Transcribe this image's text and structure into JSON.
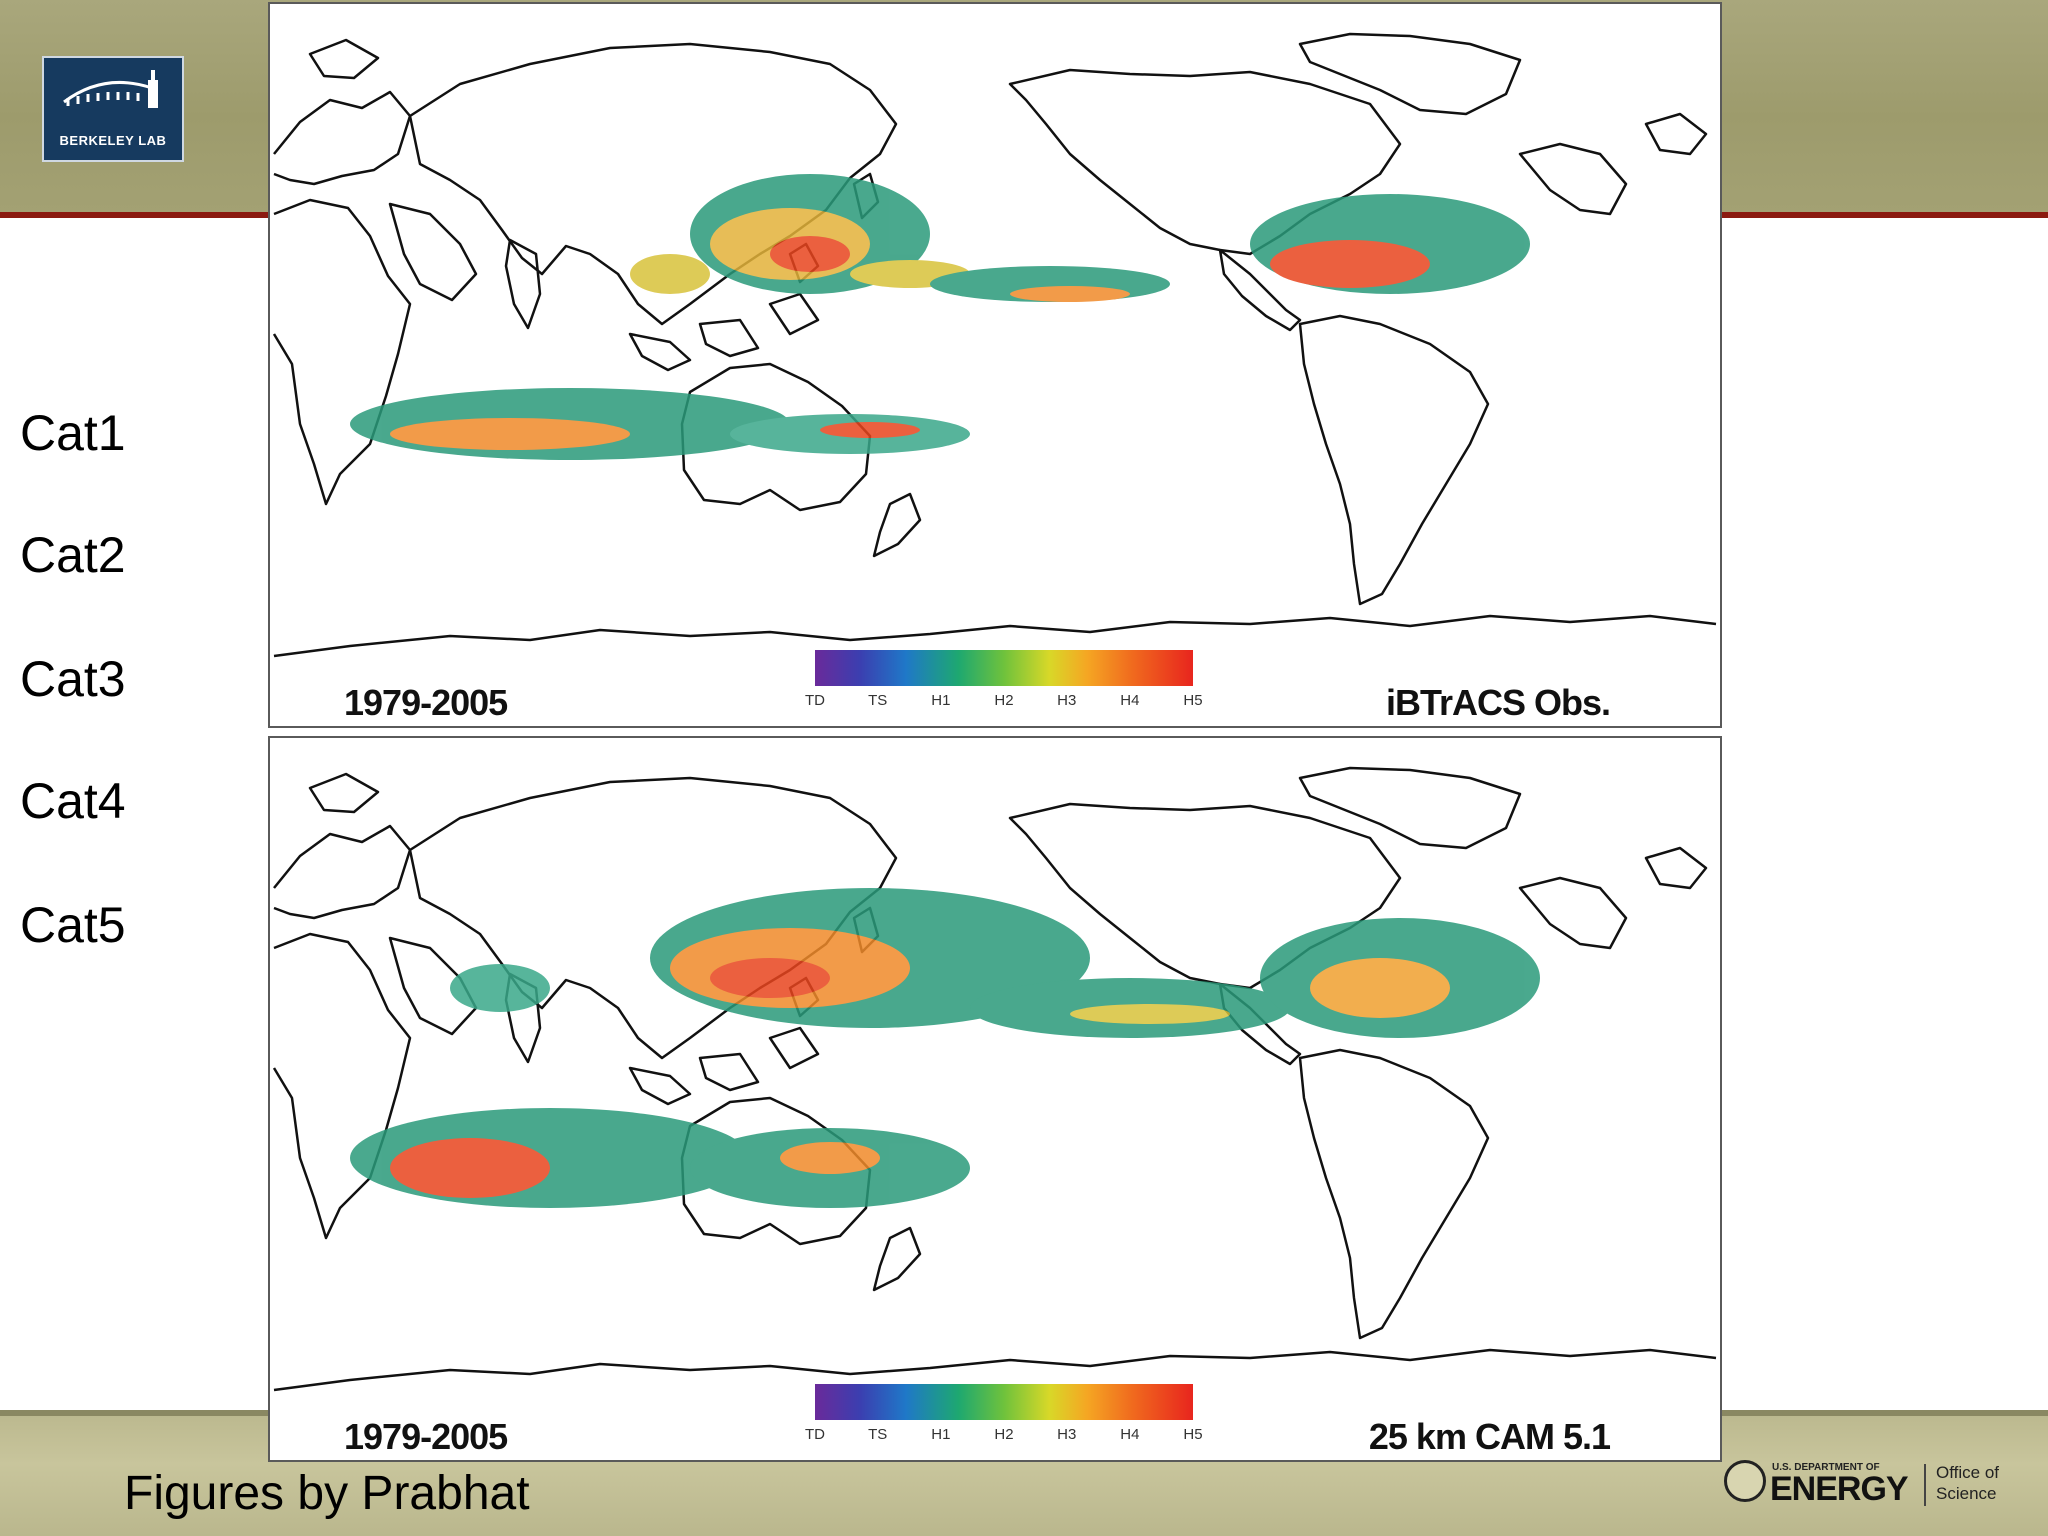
{
  "logo": {
    "text": "BERKELEY LAB",
    "color": "#163a5f"
  },
  "categories": [
    "Cat1",
    "Cat2",
    "Cat3",
    "Cat4",
    "Cat5"
  ],
  "credit": "Figures by Prabhat",
  "colorbar": {
    "ticks": [
      "TD",
      "TS",
      "H1",
      "H2",
      "H3",
      "H4",
      "H5"
    ],
    "colors": [
      "#6a2a9a",
      "#1f78c8",
      "#1ea870",
      "#6fc23c",
      "#d8d828",
      "#f5a623",
      "#e8251e"
    ]
  },
  "panels": [
    {
      "period": "1979-2005",
      "source": "iBTrACS Obs."
    },
    {
      "period": "1979-2005",
      "source": "25 km CAM 5.1"
    }
  ],
  "footer_logo": {
    "department": "U.S. DEPARTMENT OF",
    "agency": "ENERGY",
    "office_line1": "Office of",
    "office_line2": "Science"
  }
}
